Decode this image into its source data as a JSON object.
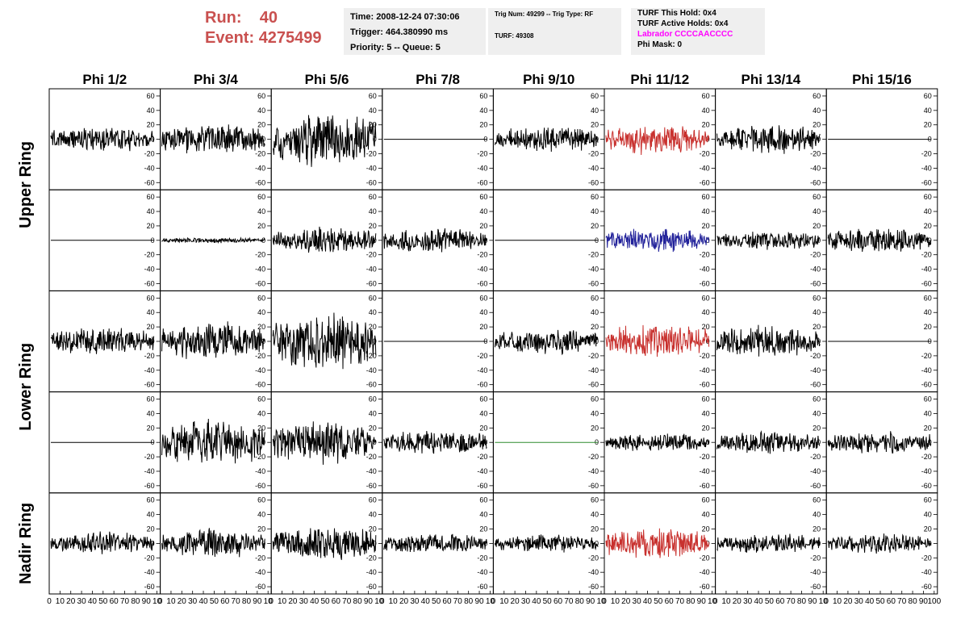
{
  "header": {
    "run_label": "Run:",
    "run_value": "40",
    "event_label": "Event:",
    "event_value": "4275499",
    "time": "Time: 2008-12-24 07:30:06",
    "trigger": "Trigger: 464.380990 ms",
    "priority": "Priority: 5 -- Queue: 5",
    "trig_num": "Trig Num: 49299 -- Trig Type: RF",
    "turf": "TURF: 49308",
    "turf_this_hold": "TURF This Hold: 0x4",
    "turf_active_holds": "TURF Active Holds: 0x4",
    "labrador": "Labrador CCCCAACCCC",
    "phi_mask": "Phi Mask: 0"
  },
  "chart_data": {
    "type": "line",
    "columns": [
      "Phi 1/2",
      "Phi 3/4",
      "Phi 5/6",
      "Phi 7/8",
      "Phi 9/10",
      "Phi 11/12",
      "Phi 13/14",
      "Phi 15/16"
    ],
    "row_labels": [
      {
        "label": "Upper Ring",
        "rows": [
          0,
          1
        ]
      },
      {
        "label": "Lower Ring",
        "rows": [
          2,
          3
        ]
      },
      {
        "label": "Nadir Ring",
        "rows": [
          4
        ]
      }
    ],
    "ylim": [
      -70,
      70
    ],
    "y_ticks": [
      -60,
      -40,
      -20,
      0,
      20,
      40,
      60
    ],
    "xlim": [
      0,
      100
    ],
    "x_tick_labels": [
      "0",
      "10",
      "20",
      "30",
      "40",
      "50",
      "60",
      "70",
      "80",
      "90",
      "10"
    ],
    "x_tick_labels_last": [
      "0",
      "10",
      "20",
      "30",
      "40",
      "50",
      "60",
      "70",
      "80",
      "90",
      "100"
    ],
    "colors": {
      "black": "#000000",
      "red": "#c8312e",
      "blue": "#22229a",
      "green": "#2e8b2e"
    },
    "panels": [
      [
        {
          "amplitude": 14,
          "color": "black"
        },
        {
          "amplitude": 17,
          "color": "black"
        },
        {
          "amplitude": 30,
          "color": "black"
        },
        {
          "amplitude": 0,
          "color": "black"
        },
        {
          "amplitude": 15,
          "color": "black"
        },
        {
          "amplitude": 17,
          "color": "red"
        },
        {
          "amplitude": 17,
          "color": "black"
        },
        {
          "amplitude": 0,
          "color": "black"
        }
      ],
      [
        {
          "amplitude": 0,
          "color": "black"
        },
        {
          "amplitude": 3,
          "color": "black"
        },
        {
          "amplitude": 15,
          "color": "black"
        },
        {
          "amplitude": 14,
          "color": "black"
        },
        {
          "amplitude": 0,
          "color": "black"
        },
        {
          "amplitude": 13,
          "color": "blue"
        },
        {
          "amplitude": 11,
          "color": "black"
        },
        {
          "amplitude": 14,
          "color": "black"
        }
      ],
      [
        {
          "amplitude": 15,
          "color": "black"
        },
        {
          "amplitude": 22,
          "color": "black"
        },
        {
          "amplitude": 33,
          "color": "black"
        },
        {
          "amplitude": 0,
          "color": "black"
        },
        {
          "amplitude": 14,
          "color": "black"
        },
        {
          "amplitude": 20,
          "color": "red"
        },
        {
          "amplitude": 18,
          "color": "black"
        },
        {
          "amplitude": 0,
          "color": "black"
        }
      ],
      [
        {
          "amplitude": 0,
          "color": "black"
        },
        {
          "amplitude": 27,
          "color": "black"
        },
        {
          "amplitude": 24,
          "color": "black"
        },
        {
          "amplitude": 13,
          "color": "black"
        },
        {
          "amplitude": 0,
          "color": "green"
        },
        {
          "amplitude": 11,
          "color": "black"
        },
        {
          "amplitude": 13,
          "color": "black"
        },
        {
          "amplitude": 13,
          "color": "black"
        }
      ],
      [
        {
          "amplitude": 13,
          "color": "black"
        },
        {
          "amplitude": 16,
          "color": "black"
        },
        {
          "amplitude": 20,
          "color": "black"
        },
        {
          "amplitude": 11,
          "color": "black"
        },
        {
          "amplitude": 10,
          "color": "black"
        },
        {
          "amplitude": 18,
          "color": "red"
        },
        {
          "amplitude": 11,
          "color": "black"
        },
        {
          "amplitude": 11,
          "color": "black"
        }
      ]
    ]
  }
}
